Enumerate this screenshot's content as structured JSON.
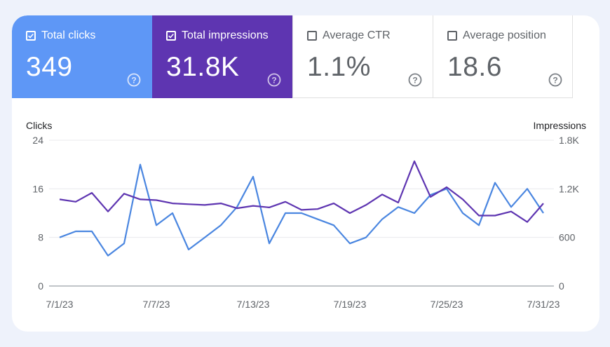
{
  "cards": [
    {
      "id": "clicks",
      "label": "Total clicks",
      "value": "349",
      "checked": true,
      "color": "#5e97f6"
    },
    {
      "id": "impressions",
      "label": "Total impressions",
      "value": "31.8K",
      "checked": true,
      "color": "#5e35b1"
    },
    {
      "id": "ctr",
      "label": "Average CTR",
      "value": "1.1%",
      "checked": false
    },
    {
      "id": "position",
      "label": "Average position",
      "value": "18.6",
      "checked": false
    }
  ],
  "help_icon": "help-circle-icon",
  "chart_data": {
    "type": "line",
    "left_axis": {
      "title": "Clicks",
      "ticks": [
        "0",
        "8",
        "16",
        "24"
      ],
      "min": 0,
      "max": 24
    },
    "right_axis": {
      "title": "Impressions",
      "ticks": [
        "0",
        "600",
        "1.2K",
        "1.8K"
      ],
      "min": 0,
      "max": 1800
    },
    "x_ticks": [
      "7/1/23",
      "7/7/23",
      "7/13/23",
      "7/19/23",
      "7/25/23",
      "7/31/23"
    ],
    "x_tick_positions": [
      0,
      6,
      12,
      18,
      24,
      30
    ],
    "series": [
      {
        "name": "Clicks",
        "color": "#4a86e0",
        "axis": "left",
        "values": [
          8,
          9,
          9,
          5,
          7,
          20,
          10,
          12,
          6,
          8,
          10,
          13,
          18,
          7,
          12,
          12,
          11,
          10,
          7,
          8,
          11,
          13,
          12,
          15,
          16,
          12,
          10,
          17,
          13,
          16,
          12
        ]
      },
      {
        "name": "Impressions",
        "color": "#5e35b1",
        "axis": "right",
        "values": [
          1070,
          1040,
          1150,
          920,
          1140,
          1070,
          1060,
          1020,
          1010,
          1000,
          1020,
          960,
          990,
          970,
          1040,
          940,
          950,
          1020,
          900,
          1000,
          1130,
          1030,
          1540,
          1100,
          1220,
          1070,
          870,
          870,
          920,
          790,
          1020
        ]
      }
    ]
  }
}
